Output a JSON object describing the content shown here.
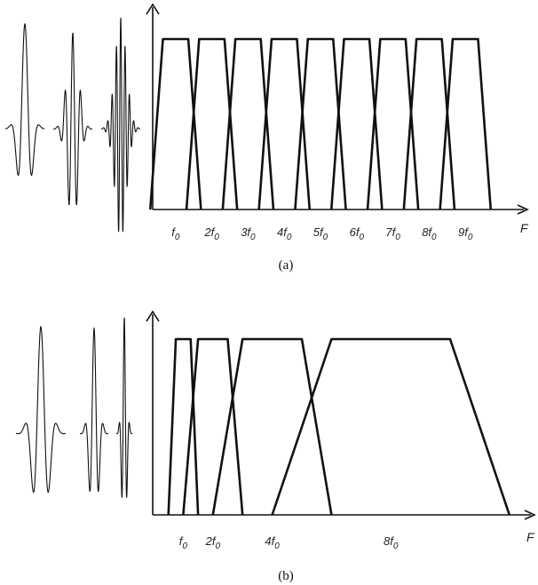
{
  "panels": [
    {
      "id": "a",
      "caption": "(a)",
      "axis_label": "F",
      "tick_labels": [
        "f0",
        "2f0",
        "3f0",
        "4f0",
        "5f0",
        "6f0",
        "7f0",
        "8f0",
        "9f0"
      ],
      "tick_values": [
        1,
        2,
        3,
        4,
        5,
        6,
        7,
        8,
        9
      ],
      "filters": [
        {
          "center": 1,
          "top_width": 0.7,
          "bottom_width": 1.4
        },
        {
          "center": 2,
          "top_width": 0.7,
          "bottom_width": 1.4
        },
        {
          "center": 3,
          "top_width": 0.7,
          "bottom_width": 1.4
        },
        {
          "center": 4,
          "top_width": 0.7,
          "bottom_width": 1.4
        },
        {
          "center": 5,
          "top_width": 0.7,
          "bottom_width": 1.4
        },
        {
          "center": 6,
          "top_width": 0.7,
          "bottom_width": 1.4
        },
        {
          "center": 7,
          "top_width": 0.7,
          "bottom_width": 1.4
        },
        {
          "center": 8,
          "top_width": 0.7,
          "bottom_width": 1.4
        },
        {
          "center": 9,
          "top_width": 0.7,
          "bottom_width": 1.4
        }
      ],
      "wavelets": [
        {
          "cycles": 2.5
        },
        {
          "cycles": 5
        },
        {
          "cycles": 9
        }
      ]
    },
    {
      "id": "b",
      "caption": "(b)",
      "axis_label": "F",
      "tick_labels": [
        "f0",
        "2f0",
        "4f0",
        "8f0"
      ],
      "tick_values": [
        1,
        2,
        4,
        8
      ],
      "filters": [
        {
          "center": 1,
          "top_width": 0.5,
          "bottom_width": 1.0
        },
        {
          "center": 2,
          "top_width": 1.0,
          "bottom_width": 2.0
        },
        {
          "center": 4,
          "top_width": 2.0,
          "bottom_width": 4.0
        },
        {
          "center": 8,
          "top_width": 4.0,
          "bottom_width": 8.0
        }
      ],
      "wavelets": [
        {
          "cycles": 3
        },
        {
          "cycles": 3
        },
        {
          "cycles": 3
        }
      ]
    }
  ]
}
